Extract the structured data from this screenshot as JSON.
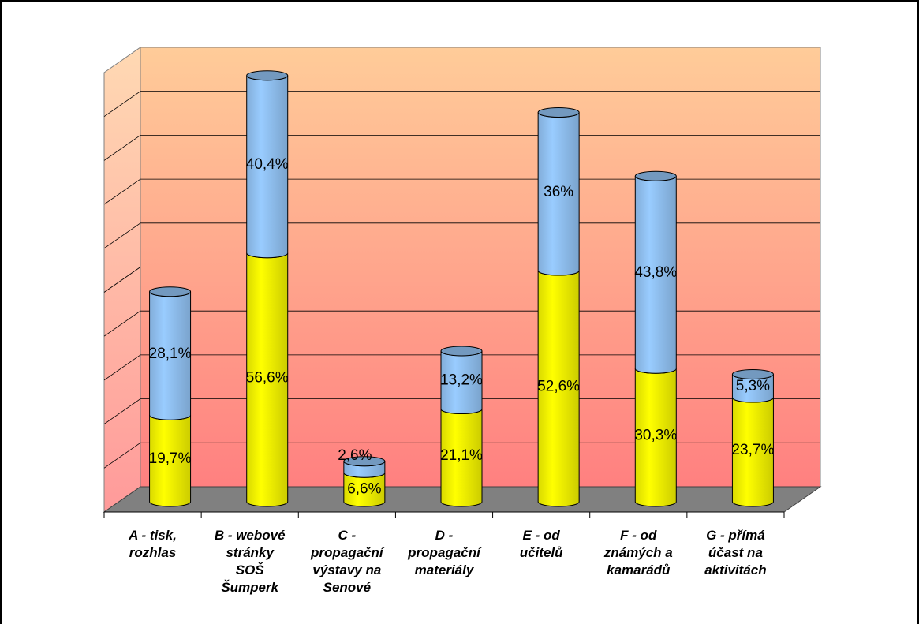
{
  "chart_data": {
    "type": "bar",
    "stacked": true,
    "three_d": true,
    "shape": "cylinder",
    "categories": [
      [
        "A -  tisk,",
        "rozhlas"
      ],
      [
        "B - webové",
        "stránky",
        "SOŠ",
        "Šumperk"
      ],
      [
        "C -",
        "propagační",
        "výstavy na",
        "Senové"
      ],
      [
        "D -",
        "propagační",
        "materiály"
      ],
      [
        "E - od",
        "učitelů"
      ],
      [
        "F - od",
        "známých a",
        "kamarádů"
      ],
      [
        "G - přímá",
        "účast na",
        "aktivitách"
      ]
    ],
    "series": [
      {
        "color": "#ffff00",
        "values": [
          19.7,
          56.6,
          6.6,
          21.1,
          52.6,
          30.3,
          23.7
        ],
        "labels": [
          "19,7%",
          "56,6%",
          "6,6%",
          "21,1%",
          "52,6%",
          "30,3%",
          "23,7%"
        ]
      },
      {
        "color": "#99ccff",
        "values": [
          28.1,
          40.4,
          2.6,
          13.2,
          36,
          43.8,
          5.3
        ],
        "labels": [
          "28,1%",
          "40,4%",
          "2,6%",
          "13,2%",
          "36%",
          "43,8%",
          "5,3%"
        ]
      }
    ],
    "ylim": [
      0,
      100
    ],
    "grid": true,
    "legend": "none",
    "wall_colors": [
      "#ff8080",
      "#ffcc99"
    ],
    "floor_color": "#808080"
  }
}
